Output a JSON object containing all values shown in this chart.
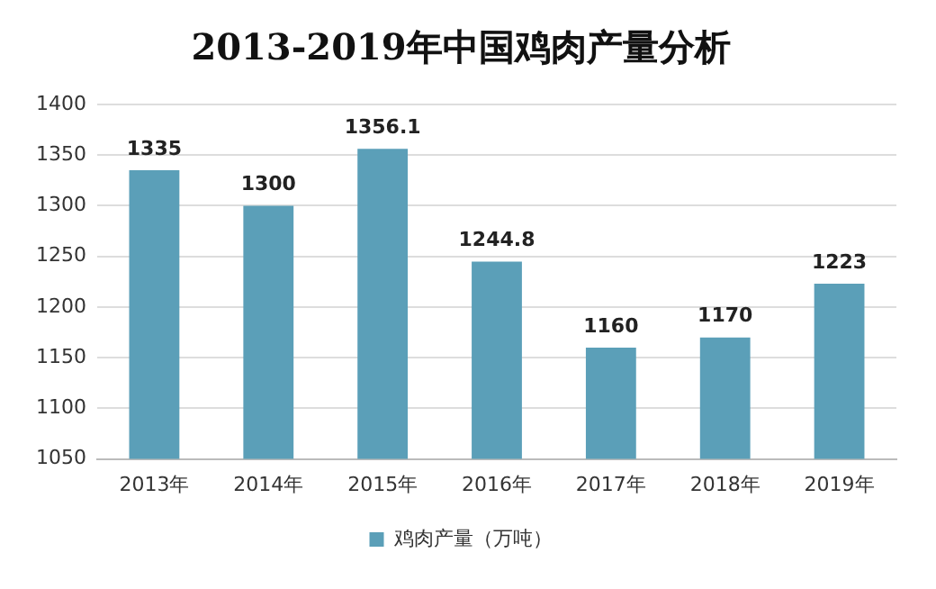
{
  "chart_data": {
    "type": "bar",
    "title": "2013-2019年中国鸡肉产量分析",
    "categories": [
      "2013年",
      "2014年",
      "2015年",
      "2016年",
      "2017年",
      "2018年",
      "2019年"
    ],
    "series": [
      {
        "name": "鸡肉产量（万吨）",
        "color": "#5b9fb8",
        "values": [
          1335,
          1300,
          1356.1,
          1244.8,
          1160,
          1170,
          1223
        ]
      }
    ],
    "ylim": [
      1050,
      1400
    ],
    "yticks": [
      1050,
      1100,
      1150,
      1200,
      1250,
      1300,
      1350,
      1400
    ],
    "grid": "y",
    "legend": "bottom",
    "data_labels": true
  }
}
